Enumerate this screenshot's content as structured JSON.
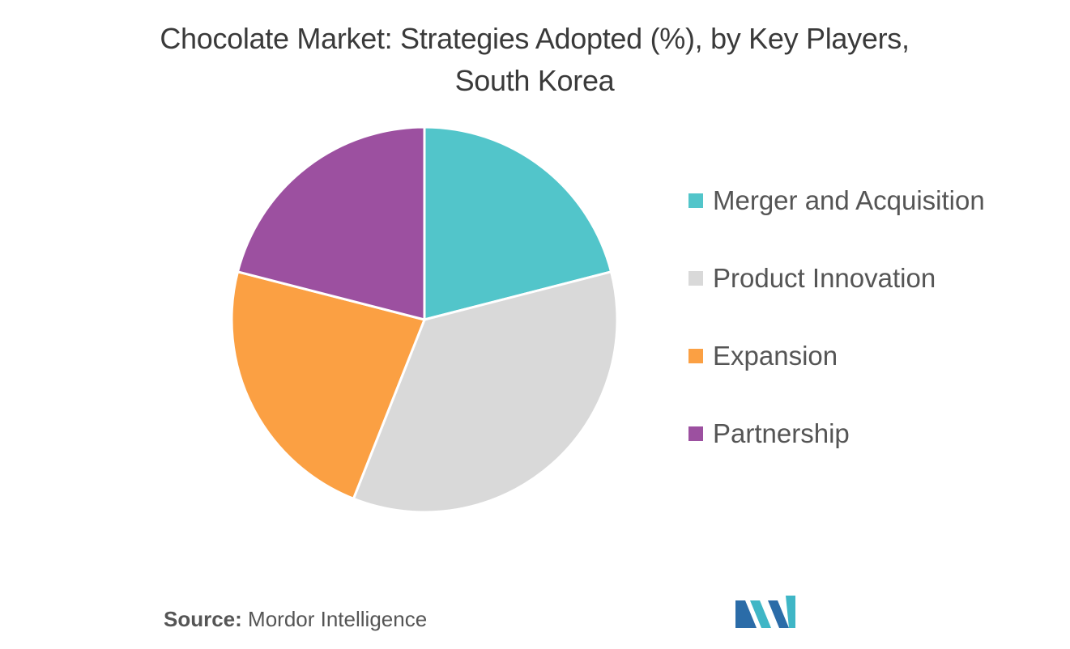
{
  "chart_data": {
    "type": "pie",
    "title_lines": [
      "Chocolate Market: Strategies Adopted (%), by Key Players,",
      "South Korea"
    ],
    "categories": [
      "Merger and Acquisition",
      "Product Innovation",
      "Expansion",
      "Partnership"
    ],
    "values": [
      21,
      35,
      23,
      21
    ],
    "colors": [
      "#52C5CA",
      "#D9D9D9",
      "#FBA043",
      "#9C50A0"
    ],
    "legend_position": "right"
  },
  "source": {
    "label": "Source:",
    "text": "Mordor Intelligence"
  },
  "logo": {
    "icon": "mordor-intelligence-logo-icon",
    "colors": [
      "#2B6CA8",
      "#3FB6C6"
    ]
  }
}
